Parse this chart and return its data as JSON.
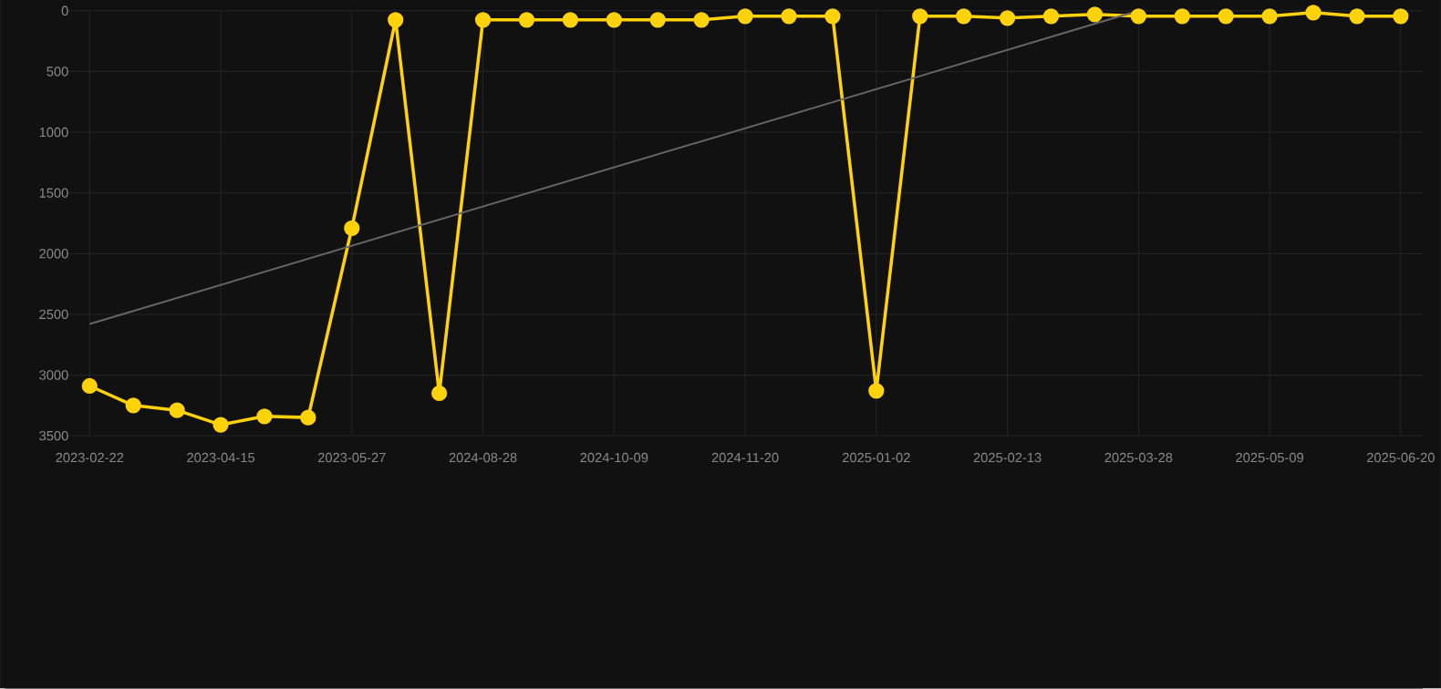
{
  "chart_data": {
    "type": "line",
    "categories": [
      "2023-02-22",
      null,
      null,
      "2023-04-15",
      null,
      null,
      "2023-05-27",
      null,
      null,
      "2024-08-28",
      null,
      null,
      "2024-10-09",
      null,
      null,
      "2024-11-20",
      null,
      null,
      "2025-01-02",
      null,
      null,
      "2025-02-13",
      null,
      null,
      "2025-03-28",
      null,
      null,
      "2025-05-09",
      null,
      null,
      "2025-06-20"
    ],
    "series": [
      {
        "color": "#ffd20a",
        "values": [
          3090,
          3250,
          3290,
          3410,
          3340,
          3350,
          1790,
          75,
          3150,
          75,
          75,
          75,
          75,
          75,
          75,
          45,
          45,
          45,
          3130,
          45,
          45,
          60,
          45,
          30,
          45,
          45,
          45,
          45,
          15,
          45,
          45
        ]
      },
      {
        "type": "line",
        "color": "#666666",
        "marker": "none",
        "values": [
          2580,
          null,
          null,
          null,
          null,
          null,
          null,
          null,
          null,
          null,
          null,
          null,
          null,
          null,
          null,
          null,
          null,
          null,
          null,
          null,
          null,
          null,
          null,
          null,
          0,
          null,
          null,
          null,
          null,
          null,
          null
        ]
      }
    ],
    "ylim": [
      3500,
      0
    ],
    "yticks": [
      0,
      500,
      1000,
      1500,
      2000,
      2500,
      3000,
      3500
    ],
    "grid": true,
    "marker": "circle",
    "line_style": "solid"
  }
}
